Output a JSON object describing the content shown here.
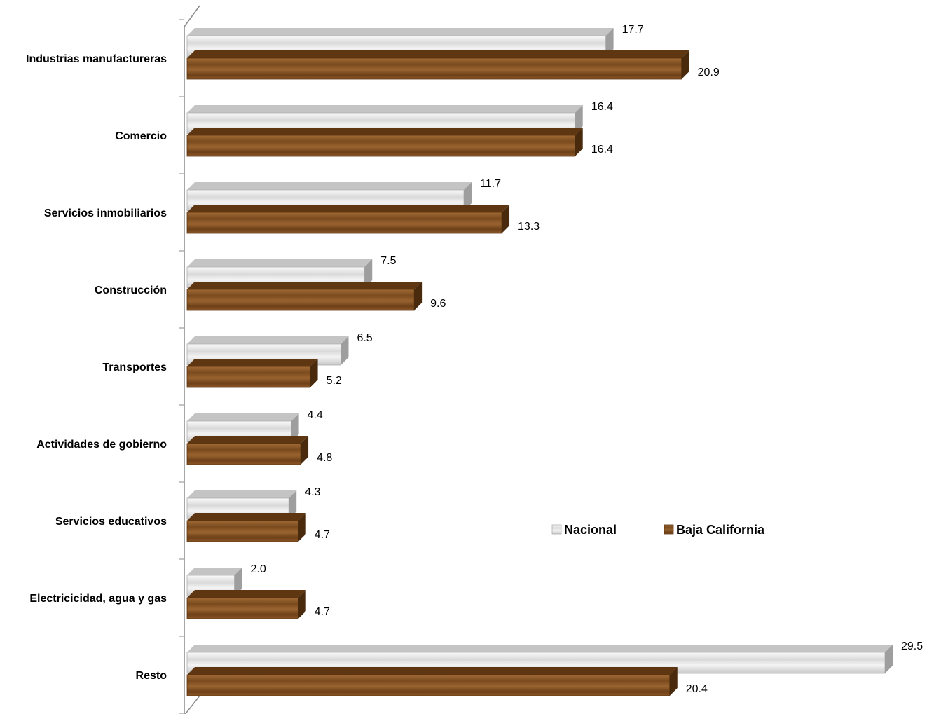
{
  "chart_data": {
    "type": "bar",
    "orientation": "horizontal",
    "categories": [
      "Industrias manufactureras",
      "Comercio",
      "Servicios inmobiliarios",
      "Construcción",
      "Transportes",
      "Actividades de gobierno",
      "Servicios educativos",
      "Electricicidad, agua y gas",
      "Resto"
    ],
    "series": [
      {
        "name": "Nacional",
        "values": [
          17.7,
          16.4,
          11.7,
          7.5,
          6.5,
          4.4,
          4.3,
          2.0,
          29.5
        ],
        "color": "#e8e8e8"
      },
      {
        "name": "Baja California",
        "values": [
          20.9,
          16.4,
          13.3,
          9.6,
          5.2,
          4.8,
          4.7,
          4.7,
          20.4
        ],
        "color": "#8b5a2b"
      }
    ],
    "value_labels": {
      "Nacional": [
        "17.7",
        "16.4",
        "11.7",
        "7.5",
        "6.5",
        "4.4",
        "4.3",
        "2.0",
        "29.5"
      ],
      "Baja California": [
        "20.9",
        "16.4",
        "13.3",
        "9.6",
        "5.2",
        "4.8",
        "4.7",
        "4.7",
        "20.4"
      ]
    },
    "xlim": [
      0,
      29.5
    ],
    "grid": false,
    "legend_position": "right-middle"
  }
}
